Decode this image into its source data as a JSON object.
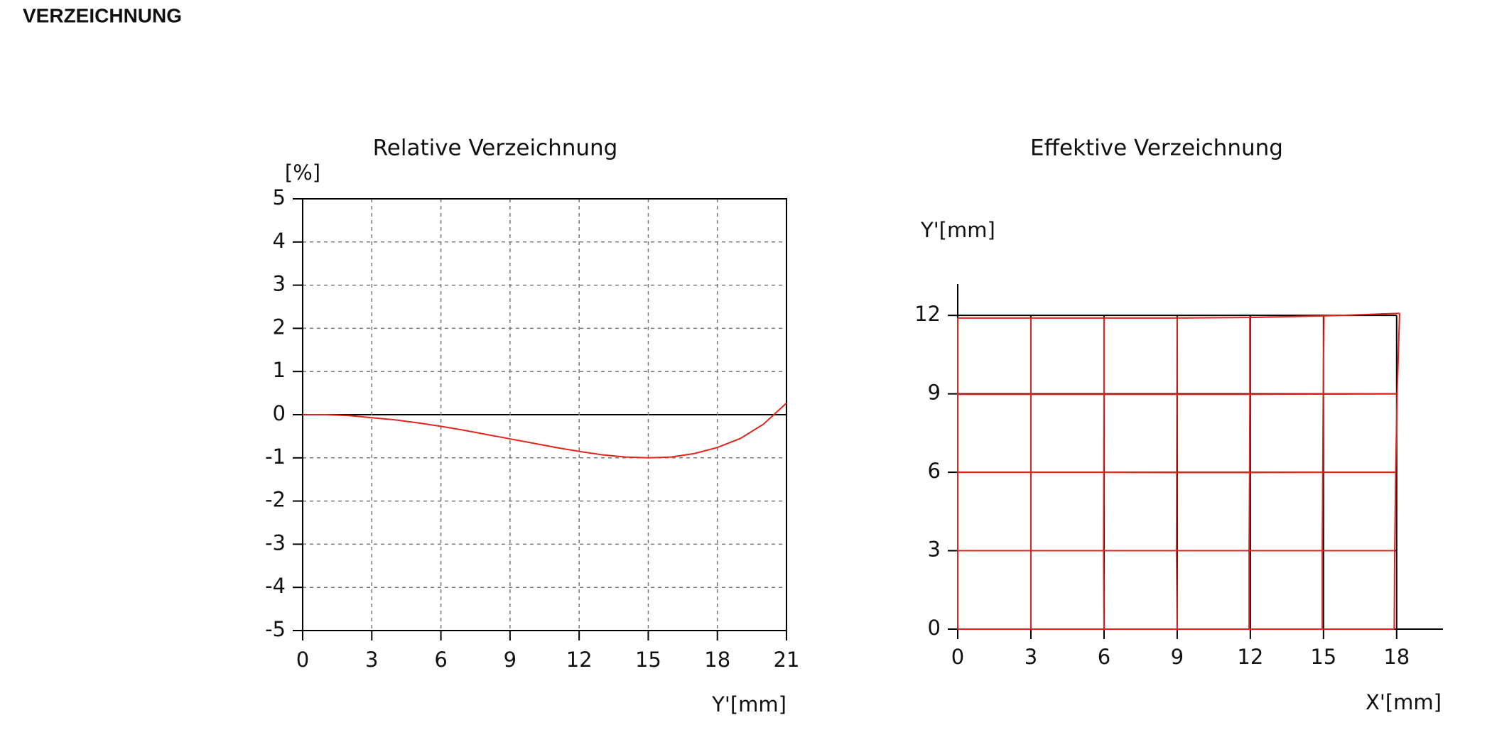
{
  "header": {
    "title": "VERZEICHNUNG"
  },
  "chart_data": [
    {
      "type": "line",
      "title": "Relative Verzeichnung",
      "ylabel": "[%]",
      "xlabel": "Y'[mm]",
      "x": [
        0,
        1,
        2,
        3,
        4,
        5,
        6,
        7,
        8,
        9,
        10,
        11,
        12,
        13,
        14,
        15,
        16,
        17,
        18,
        19,
        20,
        21
      ],
      "series": [
        {
          "color": "#e3241d",
          "values": [
            0,
            0,
            -0.02,
            -0.07,
            -0.12,
            -0.19,
            -0.27,
            -0.36,
            -0.46,
            -0.56,
            -0.66,
            -0.76,
            -0.85,
            -0.93,
            -0.98,
            -1.0,
            -0.98,
            -0.9,
            -0.76,
            -0.55,
            -0.22,
            0.27
          ]
        }
      ],
      "xlim": [
        0,
        21
      ],
      "xticks": [
        0,
        3,
        6,
        9,
        12,
        15,
        18,
        21
      ],
      "ylim": [
        -5,
        5
      ],
      "yticks": [
        -5,
        -4,
        -3,
        -2,
        -1,
        0,
        1,
        2,
        3,
        4,
        5
      ],
      "grid": true,
      "grid_style": "dashed"
    },
    {
      "type": "grid-distortion",
      "title": "Effektive Verzeichnung",
      "ylabel": "Y'[mm]",
      "xlabel": "X'[mm]",
      "xlim": [
        0,
        19.9
      ],
      "xticks": [
        0,
        3,
        6,
        9,
        12,
        15,
        18
      ],
      "ylim": [
        0,
        13.2
      ],
      "yticks": [
        0,
        3,
        6,
        9,
        12
      ],
      "grid_color": "#000000",
      "distorted": {
        "color": "#e3241d",
        "x": [
          [
            0,
            3,
            6,
            9,
            11.95,
            14.95,
            17.9
          ],
          [
            0,
            3,
            5.98,
            8.97,
            11.95,
            14.95,
            17.92
          ],
          [
            0,
            3,
            5.99,
            8.98,
            11.97,
            14.97,
            17.96
          ],
          [
            0,
            3,
            6,
            8.99,
            11.98,
            14.99,
            18.02
          ],
          [
            0,
            3,
            6,
            9,
            11.98,
            15.02,
            18.12
          ]
        ],
        "y": [
          [
            0,
            0,
            0,
            0,
            0,
            0,
            0
          ],
          [
            3,
            3,
            3,
            3,
            3,
            3,
            3
          ],
          [
            6,
            6,
            6,
            5.99,
            5.99,
            6,
            6
          ],
          [
            8.98,
            8.98,
            8.98,
            8.98,
            8.98,
            8.99,
            9.0
          ],
          [
            11.9,
            11.9,
            11.9,
            11.9,
            11.92,
            11.98,
            12.08
          ]
        ]
      }
    }
  ]
}
